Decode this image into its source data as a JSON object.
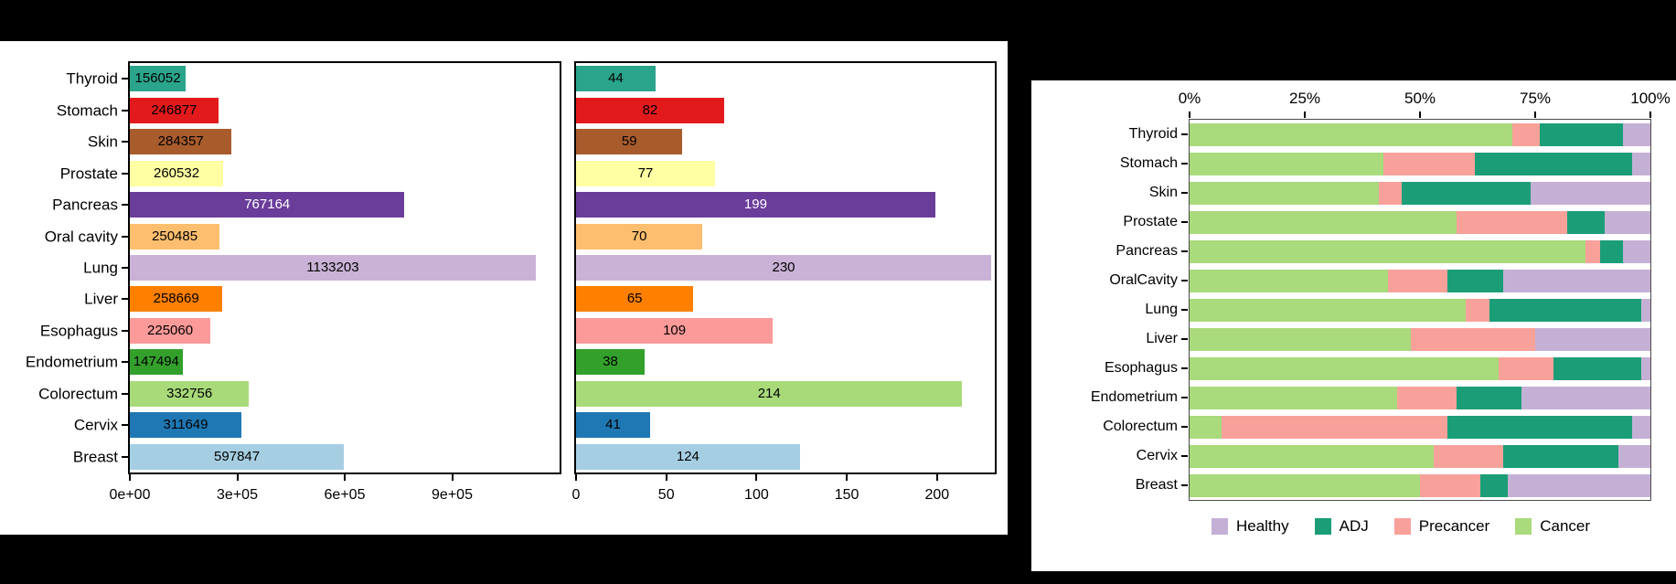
{
  "figure": {
    "background": "#000000",
    "panel_background": "#ffffff"
  },
  "chart_data": [
    {
      "id": "cell-counts",
      "type": "bar",
      "orientation": "horizontal",
      "title": "",
      "xlabel": "",
      "ylabel": "",
      "categories": [
        "Thyroid",
        "Stomach",
        "Skin",
        "Prostate",
        "Pancreas",
        "Oral cavity",
        "Lung",
        "Liver",
        "Esophagus",
        "Endometrium",
        "Colorectum",
        "Cervix",
        "Breast"
      ],
      "values": [
        156052,
        246877,
        284357,
        260532,
        767164,
        250485,
        1133203,
        258669,
        225060,
        147494,
        332756,
        311649,
        597847
      ],
      "bar_colors": [
        "#2aa58b",
        "#e31a1c",
        "#a85c2c",
        "#ffffa3",
        "#6a3d9a",
        "#fdbf6f",
        "#cab2d6",
        "#ff7f00",
        "#fb9a99",
        "#33a02c",
        "#a8da7a",
        "#1f78b4",
        "#a6cee3"
      ],
      "label_colors": [
        "#000000",
        "#000000",
        "#000000",
        "#000000",
        "#ffffff",
        "#000000",
        "#000000",
        "#000000",
        "#000000",
        "#000000",
        "#000000",
        "#000000",
        "#000000"
      ],
      "xlim": [
        0,
        1200000
      ],
      "x_ticks": [
        {
          "value": 0,
          "label": "0e+00"
        },
        {
          "value": 300000,
          "label": "3e+05"
        },
        {
          "value": 600000,
          "label": "6e+05"
        },
        {
          "value": 900000,
          "label": "9e+05"
        }
      ],
      "grid": false,
      "show_category_labels": true
    },
    {
      "id": "sample-counts",
      "type": "bar",
      "orientation": "horizontal",
      "title": "",
      "xlabel": "",
      "ylabel": "",
      "categories": [
        "Thyroid",
        "Stomach",
        "Skin",
        "Prostate",
        "Pancreas",
        "Oral cavity",
        "Lung",
        "Liver",
        "Esophagus",
        "Endometrium",
        "Colorectum",
        "Cervix",
        "Breast"
      ],
      "values": [
        44,
        82,
        59,
        77,
        199,
        70,
        230,
        65,
        109,
        38,
        214,
        41,
        124
      ],
      "bar_colors": [
        "#2aa58b",
        "#e31a1c",
        "#a85c2c",
        "#ffffa3",
        "#6a3d9a",
        "#fdbf6f",
        "#cab2d6",
        "#ff7f00",
        "#fb9a99",
        "#33a02c",
        "#a8da7a",
        "#1f78b4",
        "#a6cee3"
      ],
      "label_colors": [
        "#000000",
        "#000000",
        "#000000",
        "#000000",
        "#ffffff",
        "#000000",
        "#000000",
        "#000000",
        "#000000",
        "#000000",
        "#000000",
        "#000000",
        "#000000"
      ],
      "xlim": [
        0,
        232
      ],
      "x_ticks": [
        {
          "value": 0,
          "label": "0"
        },
        {
          "value": 50,
          "label": "50"
        },
        {
          "value": 100,
          "label": "100"
        },
        {
          "value": 150,
          "label": "150"
        },
        {
          "value": 200,
          "label": "200"
        }
      ],
      "grid": false,
      "show_category_labels": false
    },
    {
      "id": "sample-composition",
      "type": "stacked_bar_percent",
      "orientation": "horizontal",
      "title": "",
      "xlabel": "",
      "ylabel": "",
      "categories": [
        "Thyroid",
        "Stomach",
        "Skin",
        "Prostate",
        "Pancreas",
        "OralCavity",
        "Lung",
        "Liver",
        "Esophagus",
        "Endometrium",
        "Colorectum",
        "Cervix",
        "Breast"
      ],
      "series": [
        {
          "name": "Cancer",
          "color": "#a9da7b",
          "values": [
            70,
            42,
            41,
            58,
            86,
            43,
            60,
            48,
            67,
            45,
            7,
            53,
            50
          ]
        },
        {
          "name": "Precancer",
          "color": "#f8a19a",
          "values": [
            6,
            20,
            5,
            24,
            3,
            13,
            5,
            27,
            12,
            13,
            49,
            15,
            13
          ]
        },
        {
          "name": "ADJ",
          "color": "#1b9e77",
          "values": [
            18,
            34,
            28,
            8,
            5,
            12,
            33,
            0,
            19,
            14,
            40,
            25,
            6
          ]
        },
        {
          "name": "Healthy",
          "color": "#c5b0d5",
          "values": [
            6,
            4,
            26,
            10,
            6,
            32,
            2,
            25,
            2,
            28,
            4,
            7,
            31
          ]
        }
      ],
      "xlim": [
        0,
        100
      ],
      "x_ticks": [
        {
          "value": 0,
          "label": "0%"
        },
        {
          "value": 25,
          "label": "25%"
        },
        {
          "value": 50,
          "label": "50%"
        },
        {
          "value": 75,
          "label": "75%"
        },
        {
          "value": 100,
          "label": "100%"
        }
      ],
      "grid": false,
      "legend": {
        "position": "bottom",
        "items": [
          "Healthy",
          "ADJ",
          "Precancer",
          "Cancer"
        ]
      }
    }
  ]
}
